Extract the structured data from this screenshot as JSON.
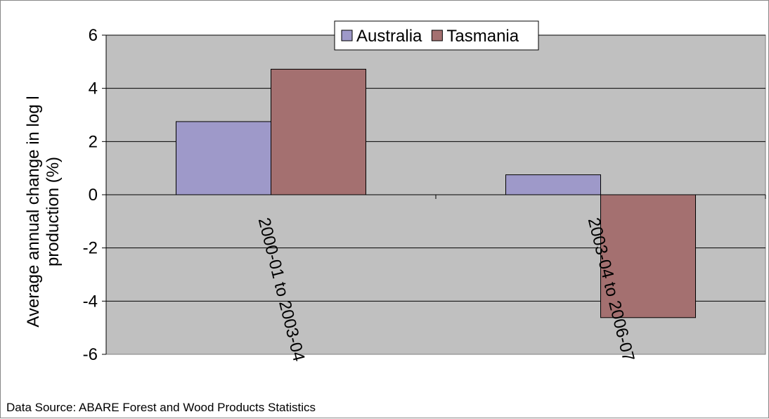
{
  "chart_data": {
    "type": "bar",
    "categories": [
      "2000-01 to 2003-04",
      "2003-04 to 2006-07"
    ],
    "series": [
      {
        "name": "Australia",
        "values": [
          2.75,
          0.75
        ],
        "color": "#9E99C9"
      },
      {
        "name": "Tasmania",
        "values": [
          4.72,
          -4.62
        ],
        "color": "#A47070"
      }
    ],
    "ylabel": [
      "Average annual change in log  l",
      "production (%)"
    ],
    "ylim": [
      -6,
      6
    ],
    "yticks": [
      -6,
      -4,
      -2,
      0,
      2,
      4,
      6
    ],
    "grid": true,
    "legend_position": "top-center",
    "plot_background": "#C0C0C0"
  },
  "footer": {
    "source": "Data Source: ABARE Forest and Wood Products Statistics"
  }
}
